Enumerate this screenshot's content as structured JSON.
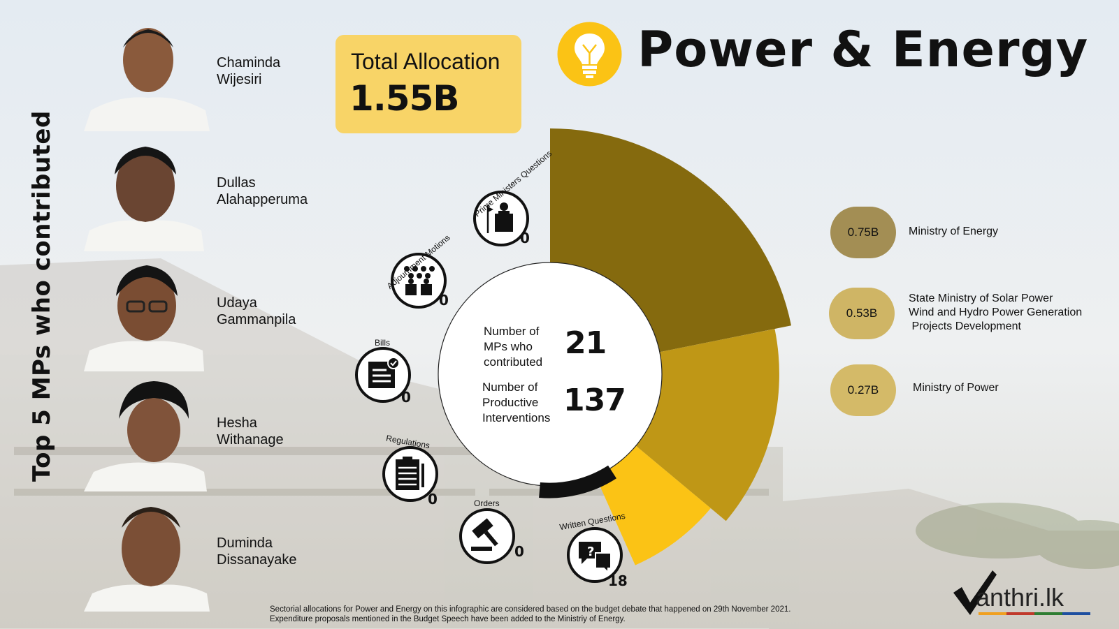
{
  "header": {
    "title": "Power & Energy",
    "total_allocation_label": "Total Allocation",
    "total_allocation_value": "1.55B"
  },
  "side_title": "Top 5 MPs who contributed",
  "top_mps": [
    {
      "first": "Chaminda",
      "last": "Wijesiri"
    },
    {
      "first": "Dullas",
      "last": "Alahapperuma"
    },
    {
      "first": "Udaya",
      "last": "Gammanpila"
    },
    {
      "first": "Hesha",
      "last": "Withanage"
    },
    {
      "first": "Duminda",
      "last": "Dissanayake"
    }
  ],
  "center": {
    "mps_label": [
      "Number of",
      "MPs who",
      "contributed"
    ],
    "mps_value": "21",
    "interventions_label": [
      "Number of",
      "Productive",
      "Interventions"
    ],
    "interventions_value": "137"
  },
  "interventions": [
    {
      "label": "Prime Ministers Questions",
      "count": "0",
      "icon": "podium-icon"
    },
    {
      "label": "Adjournment Motions",
      "count": "0",
      "icon": "audience-icon"
    },
    {
      "label": "Bills",
      "count": "0",
      "icon": "document-check-icon"
    },
    {
      "label": "Regulations",
      "count": "0",
      "icon": "clipboard-icon"
    },
    {
      "label": "Orders",
      "count": "0",
      "icon": "gavel-icon"
    },
    {
      "label": "Written Questions",
      "count": "18",
      "icon": "speech-bubbles-icon"
    }
  ],
  "chart_data": {
    "type": "pie",
    "title": "",
    "categories": [
      "Ministry of Energy",
      "State Ministry of Solar Power Wind and Hydro Power Generation Projects Development",
      "Ministry of Power"
    ],
    "values": [
      0.75,
      0.53,
      0.27
    ],
    "value_labels": [
      "0.75B",
      "0.53B",
      "0.27B"
    ],
    "unit": "B",
    "total": 1.55,
    "colors": [
      "#856a0e",
      "#bf9716",
      "#fbc315"
    ],
    "legend_placement": "right"
  },
  "legend": [
    {
      "value": "0.75B",
      "lines": [
        "Ministry of Energy"
      ],
      "pill_color": "#a38e54"
    },
    {
      "value": "0.53B",
      "lines": [
        "State Ministry of Solar Power",
        "Wind and Hydro Power Generation",
        " Projects Development"
      ],
      "pill_color": "#cfb565"
    },
    {
      "value": "0.27B",
      "lines": [
        "Ministry of Power"
      ],
      "pill_color": "#d4ba68"
    }
  ],
  "footnote": [
    "Sectorial allocations for Power and Energy on this infographic are considered based on the budget debate that happened on 29th November 2021.",
    "Expenditure proposals mentioned in the Budget Speech have been added to the Ministriy of Energy."
  ],
  "logo_text": "anthri.lk"
}
